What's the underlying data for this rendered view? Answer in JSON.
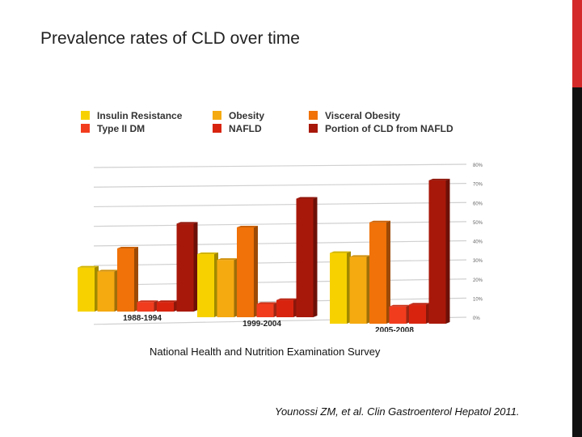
{
  "slide": {
    "title": "Prevalence rates of CLD over time",
    "caption": "National Health and Nutrition Examination Survey",
    "citation": "Younossi ZM, et al. Clin Gastroenterol Hepatol 2011.",
    "accent_colors": {
      "top_bar": "#d42a2a",
      "side_bar": "#111111"
    }
  },
  "chart_data": {
    "type": "bar",
    "categories": [
      "1988-1994",
      "1999-2004",
      "2005-2008"
    ],
    "series": [
      {
        "name": "Insulin Resistance",
        "color": "#f7d200",
        "values": [
          23,
          33,
          37
        ]
      },
      {
        "name": "Obesity",
        "color": "#f5aa10",
        "values": [
          21,
          30,
          35
        ]
      },
      {
        "name": "Visceral Obesity",
        "color": "#f07208",
        "values": [
          33,
          47,
          53
        ]
      },
      {
        "name": "Type II DM",
        "color": "#f23c1e",
        "values": [
          5,
          7,
          9
        ]
      },
      {
        "name": "NAFLD",
        "color": "#d8240f",
        "values": [
          5,
          9,
          10
        ]
      },
      {
        "name": "Portion of CLD from NAFLD",
        "color": "#a8180a",
        "values": [
          46,
          62,
          75
        ]
      }
    ],
    "ylim": [
      0,
      80
    ],
    "yticks": [
      "0%",
      "10%",
      "20%",
      "30%",
      "40%",
      "50%",
      "60%",
      "70%",
      "80%"
    ],
    "grid": true,
    "legend": "top",
    "xlabel": "",
    "ylabel": "",
    "title": ""
  }
}
